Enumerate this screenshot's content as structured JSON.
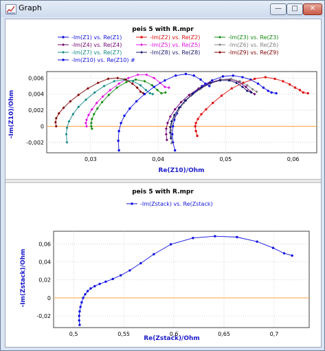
{
  "window": {
    "title": "Graph",
    "minimize_glyph": "—",
    "maximize_glyph": "□",
    "close_glyph": "✕"
  },
  "colors": {
    "zero_line": "#ffa040",
    "axis_label": "#1a1ac8",
    "grid": "#c8c8c8"
  },
  "chart_data": [
    {
      "type": "line",
      "title": "peis 5 with R.mpr",
      "xlabel": "Re(Z10)/Ohm",
      "ylabel": "-Im(Z10)/Ohm",
      "xlim": [
        0.0235,
        0.0635
      ],
      "ylim": [
        -0.0033,
        0.0068
      ],
      "xticks": [
        "0,03",
        "0,04",
        "0,05",
        "0,06"
      ],
      "xtick_values": [
        0.03,
        0.04,
        0.05,
        0.06
      ],
      "yticks": [
        "0,006",
        "0,004",
        "0,002",
        "0",
        "-0,002"
      ],
      "ytick_values": [
        0.006,
        0.004,
        0.002,
        0,
        -0.002
      ],
      "series": [
        {
          "name": "-Im(Z1) vs. Re(Z1)",
          "color": "#1010e0",
          "marker": "circle",
          "x": [
            0.0425,
            0.0422,
            0.0421,
            0.0422,
            0.0424,
            0.0428,
            0.0433,
            0.0441,
            0.0452,
            0.0465,
            0.048,
            0.0496,
            0.0511,
            0.0525,
            0.0537,
            0.0548,
            0.0556,
            0.0563,
            0.0568,
            0.0575
          ],
          "y": [
            -0.003,
            -0.002,
            -0.001,
            0.0,
            0.0008,
            0.0016,
            0.0024,
            0.0032,
            0.0041,
            0.005,
            0.0057,
            0.0062,
            0.0063,
            0.0061,
            0.0058,
            0.0053,
            0.0048,
            0.0044,
            0.0042,
            0.0041
          ]
        },
        {
          "name": "-Im(Z2) vs. Re(Z2)",
          "color": "#e01010",
          "marker": "circle",
          "x": [
            0.0458,
            0.0456,
            0.0455,
            0.0456,
            0.0459,
            0.0464,
            0.0471,
            0.0481,
            0.0494,
            0.0509,
            0.0526,
            0.0543,
            0.0559,
            0.0573,
            0.0585,
            0.0595,
            0.0603,
            0.061,
            0.0615,
            0.0622
          ],
          "y": [
            -0.0012,
            -0.0006,
            0.0,
            0.0004,
            0.0009,
            0.0015,
            0.0021,
            0.0029,
            0.0038,
            0.0047,
            0.0054,
            0.0059,
            0.0061,
            0.0059,
            0.0056,
            0.0052,
            0.0048,
            0.0045,
            0.0042,
            0.0041
          ]
        },
        {
          "name": "-Im(Z3) vs. Re(Z3)",
          "color": "#108a10",
          "marker": "diamond",
          "x": [
            0.0302,
            0.0301,
            0.0301,
            0.0302,
            0.0305,
            0.031,
            0.0317,
            0.0327,
            0.0339,
            0.0353,
            0.0367,
            0.038,
            0.0391,
            0.0399,
            0.0405,
            0.0411
          ],
          "y": [
            -0.0003,
            0.0,
            0.0004,
            0.0009,
            0.0015,
            0.0022,
            0.003,
            0.0039,
            0.0048,
            0.0055,
            0.0058,
            0.0056,
            0.0051,
            0.0045,
            0.0041,
            0.0042
          ]
        },
        {
          "name": "-Im(Z4) vs. Re(Z4)",
          "color": "#700070",
          "marker": "diamond",
          "x": [
            0.0413,
            0.0412,
            0.0412,
            0.0414,
            0.0418,
            0.0425,
            0.0434,
            0.0446,
            0.046,
            0.0476,
            0.0492,
            0.0507,
            0.052,
            0.053,
            0.0537,
            0.0543
          ],
          "y": [
            -0.0017,
            -0.001,
            -0.0003,
            0.0004,
            0.0012,
            0.0021,
            0.003,
            0.0039,
            0.0047,
            0.0054,
            0.0058,
            0.0058,
            0.0055,
            0.0049,
            0.0043,
            0.004
          ]
        },
        {
          "name": "-Im(Z5) vs. Re(Z5)",
          "color": "#e010e0",
          "marker": "diamond",
          "x": [
            0.0294,
            0.0293,
            0.0294,
            0.0297,
            0.0302,
            0.0309,
            0.0318,
            0.0329,
            0.0342,
            0.0356,
            0.037,
            0.0383,
            0.0394,
            0.0403,
            0.041,
            0.0416
          ],
          "y": [
            0.0,
            0.0004,
            0.0008,
            0.0014,
            0.0021,
            0.0029,
            0.0037,
            0.0045,
            0.0053,
            0.006,
            0.0064,
            0.0064,
            0.006,
            0.0054,
            0.0049,
            0.0048
          ]
        },
        {
          "name": "-Im(Z6) vs. Re(Z6)",
          "color": "#808080",
          "marker": "diamond",
          "x": [
            0.042,
            0.0419,
            0.0419,
            0.042,
            0.0424,
            0.043,
            0.0438,
            0.0449,
            0.0462,
            0.0477,
            0.0493,
            0.0508,
            0.0521,
            0.0532,
            0.054,
            0.0546
          ],
          "y": [
            -0.0021,
            -0.0013,
            -0.0005,
            0.0003,
            0.0011,
            0.002,
            0.0029,
            0.0038,
            0.0046,
            0.0053,
            0.0058,
            0.0059,
            0.0056,
            0.0051,
            0.0046,
            0.0043
          ]
        },
        {
          "name": "-Im(Z7) vs. Re(Z7)",
          "color": "#108888",
          "marker": "diamond",
          "x": [
            0.0265,
            0.0264,
            0.0265,
            0.0268,
            0.0274,
            0.0282,
            0.0293,
            0.0306,
            0.032,
            0.0335,
            0.035,
            0.0363,
            0.0374,
            0.0382,
            0.0388,
            0.0392
          ],
          "y": [
            -0.002,
            -0.001,
            -0.0002,
            0.0006,
            0.0015,
            0.0024,
            0.0033,
            0.0042,
            0.005,
            0.0056,
            0.0058,
            0.0056,
            0.0051,
            0.0045,
            0.0041,
            0.004
          ]
        },
        {
          "name": "-Im(Z8) vs. Re(Z8)",
          "color": "#181870",
          "marker": "diamond",
          "x": [
            0.0419,
            0.0418,
            0.0418,
            0.042,
            0.0424,
            0.0431,
            0.044,
            0.0451,
            0.0464,
            0.0478,
            0.0492,
            0.0505,
            0.0516,
            0.0525,
            0.0532,
            0.0538
          ],
          "y": [
            -0.0015,
            -0.0008,
            -0.0001,
            0.0006,
            0.0014,
            0.0023,
            0.0032,
            0.004,
            0.0048,
            0.0054,
            0.0057,
            0.0057,
            0.0054,
            0.0049,
            0.0044,
            0.0042
          ]
        },
        {
          "name": "-Im(Z9) vs. Re(Z9)",
          "color": "#800000",
          "marker": "diamond",
          "x": [
            0.0249,
            0.0248,
            0.0249,
            0.0253,
            0.026,
            0.027,
            0.0282,
            0.0296,
            0.0311,
            0.0326,
            0.034,
            0.0352,
            0.0362,
            0.0369,
            0.0374,
            0.0378
          ],
          "y": [
            0.0,
            0.0005,
            0.001,
            0.0016,
            0.0023,
            0.0031,
            0.0039,
            0.0047,
            0.0054,
            0.0059,
            0.006,
            0.0058,
            0.0053,
            0.0048,
            0.0043,
            0.0041
          ]
        },
        {
          "name": "-Im(Z10) vs. Re(Z10) #",
          "color": "#1010e0",
          "marker": "circle",
          "x": [
            0.0342,
            0.0341,
            0.0342,
            0.0345,
            0.035,
            0.0358,
            0.0368,
            0.038,
            0.0394,
            0.041,
            0.0426,
            0.0441,
            0.0453,
            0.0463,
            0.047,
            0.0476
          ],
          "y": [
            -0.003,
            -0.0018,
            -0.0006,
            0.0004,
            0.0013,
            0.0022,
            0.0031,
            0.004,
            0.0049,
            0.0057,
            0.0063,
            0.0065,
            0.0063,
            0.0058,
            0.0053,
            0.005
          ]
        }
      ]
    },
    {
      "type": "line",
      "title": "peis 5 with R.mpr",
      "xlabel": "Re(Zstack)/Ohm",
      "ylabel": "-Im(Zstack)/Ohm",
      "xlim": [
        0.48,
        0.735
      ],
      "ylim": [
        -0.033,
        0.074
      ],
      "xticks": [
        "0,5",
        "0,55",
        "0,6",
        "0,65",
        "0,7"
      ],
      "xtick_values": [
        0.5,
        0.55,
        0.6,
        0.65,
        0.7
      ],
      "yticks": [
        "0,06",
        "0,04",
        "0,02",
        "0",
        "-0,02"
      ],
      "ytick_values": [
        0.06,
        0.04,
        0.02,
        0,
        -0.02
      ],
      "series": [
        {
          "name": "-Im(Zstack) vs. Re(Zstack)",
          "color": "#1010e0",
          "marker": "circle",
          "x": [
            0.506,
            0.5055,
            0.5055,
            0.506,
            0.5068,
            0.508,
            0.5095,
            0.5115,
            0.514,
            0.517,
            0.521,
            0.526,
            0.532,
            0.539,
            0.547,
            0.556,
            0.567,
            0.58,
            0.597,
            0.619,
            0.641,
            0.663,
            0.683,
            0.699,
            0.71,
            0.718
          ],
          "y": [
            -0.03,
            -0.025,
            -0.02,
            -0.015,
            -0.01,
            -0.005,
            0.0,
            0.004,
            0.0075,
            0.0105,
            0.013,
            0.0155,
            0.018,
            0.021,
            0.025,
            0.0305,
            0.0385,
            0.0485,
            0.0595,
            0.0665,
            0.0685,
            0.0675,
            0.0625,
            0.0555,
            0.0495,
            0.047
          ]
        }
      ]
    }
  ]
}
